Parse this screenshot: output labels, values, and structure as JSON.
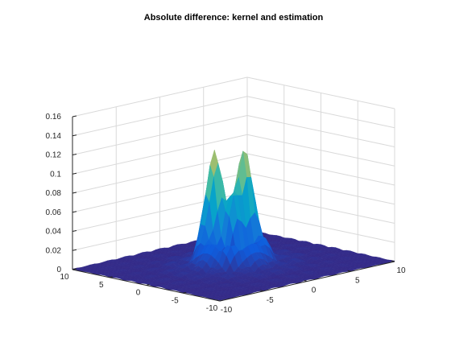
{
  "chart_data": {
    "type": "surface",
    "title": "Absolute difference: kernel and estimation",
    "xlabel": "",
    "ylabel": "",
    "zlabel": "",
    "xlim": [
      -10,
      10
    ],
    "ylim": [
      -10,
      10
    ],
    "zlim": [
      0,
      0.16
    ],
    "x_ticks": [
      -10,
      -5,
      0,
      5,
      10
    ],
    "y_ticks": [
      -10,
      -5,
      0,
      5,
      10
    ],
    "z_ticks": [
      0,
      0.02,
      0.04,
      0.06,
      0.08,
      0.1,
      0.12,
      0.14,
      0.16
    ],
    "z_tick_labels": [
      "0",
      "0.02",
      "0.04",
      "0.06",
      "0.08",
      "0.1",
      "0.12",
      "0.14",
      "0.16"
    ],
    "grid": true,
    "colormap": "parula",
    "peaks": [
      {
        "x": -0.6,
        "y": 1.8,
        "z": 0.14
      },
      {
        "x": 1.6,
        "y": 0.6,
        "z": 0.145
      }
    ]
  }
}
